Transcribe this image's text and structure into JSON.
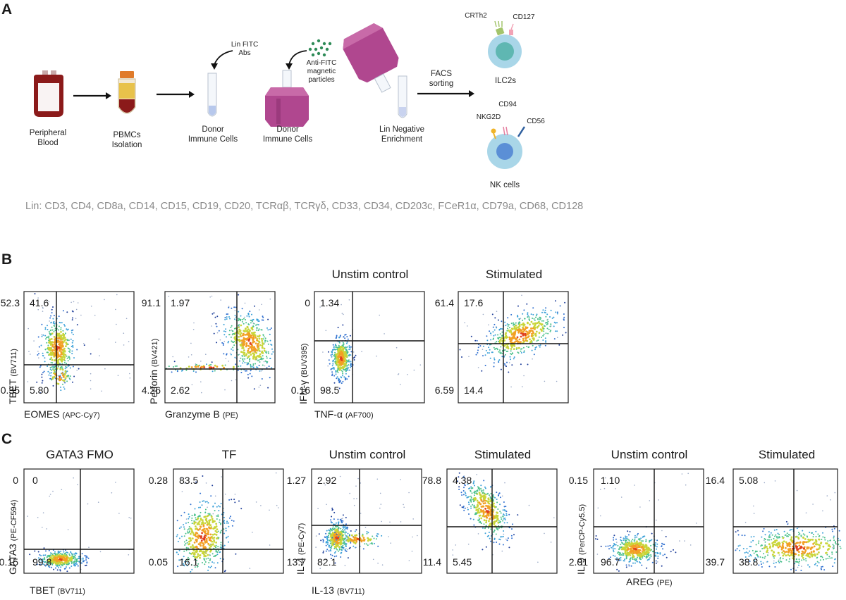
{
  "panel_a": {
    "letter": "A",
    "steps": {
      "peripheral_blood": "Peripheral\nBlood",
      "pbmcs": "PBMCs\nIsolation",
      "donor1": "Donor\nImmune Cells",
      "donor2": "Donor\nImmune Cells",
      "lin_neg": "Lin Negative\nEnrichment",
      "facs": "FACS\nsorting"
    },
    "annotations": {
      "lin_fitc": "Lin FITC\nAbs",
      "anti_fitc": "Anti-FITC\nmagnetic\nparticles"
    },
    "cells": {
      "ilc2_name": "ILC2s",
      "ilc2_markers": [
        "CRTh2",
        "CD127"
      ],
      "nk_name": "NK cells",
      "nk_markers": [
        "CD94",
        "NKG2D",
        "CD56"
      ]
    },
    "lin_list": "Lin: CD3, CD4, CD8a, CD14, CD15, CD19, CD20, TCRαβ, TCRγδ, CD33, CD34, CD203c, FCeR1α, CD79a, CD68, CD128",
    "colors": {
      "blood": "#8b1a1a",
      "column": "#b0478f",
      "cell": "#a9d6e8",
      "nucleus": "#5fb7b2",
      "nk_nucleus": "#5b8fd6"
    }
  },
  "panel_b": {
    "letter": "B",
    "plots": [
      {
        "title": "",
        "xlabel": "EOMES",
        "xlabel_fluor": "(APC-Cy7)",
        "ylabel": "TBET",
        "ylabel_fluor": "(BV711)",
        "quadrants": {
          "ul": "41.6",
          "ur": "52.3",
          "ll": "5.80",
          "lr": "0.35"
        }
      },
      {
        "title": "",
        "xlabel": "Granzyme B",
        "xlabel_fluor": "(PE)",
        "ylabel": "Perforin",
        "ylabel_fluor": "(BV421)",
        "quadrants": {
          "ul": "1.97",
          "ur": "91.1",
          "ll": "2.62",
          "lr": "4.26"
        }
      },
      {
        "title": "Unstim control",
        "xlabel": "TNF-α",
        "xlabel_fluor": "(AF700)",
        "ylabel": "IFN-γ",
        "ylabel_fluor": "(BUV395)",
        "quadrants": {
          "ul": "1.34",
          "ur": "0",
          "ll": "98.5",
          "lr": "0.16"
        }
      },
      {
        "title": "Stimulated",
        "xlabel": "",
        "xlabel_fluor": "",
        "ylabel": "",
        "ylabel_fluor": "",
        "quadrants": {
          "ul": "17.6",
          "ur": "61.4",
          "ll": "14.4",
          "lr": "6.59"
        }
      }
    ]
  },
  "panel_c": {
    "letter": "C",
    "plots": [
      {
        "title": "GATA3 FMO",
        "xlabel": "TBET",
        "xlabel_fluor": "(BV711)",
        "ylabel": "GATA3",
        "ylabel_fluor": "(PE-CF594)",
        "quadrants": {
          "ul": "0",
          "ur": "0",
          "ll": "99.8",
          "lr": "0.15"
        }
      },
      {
        "title": "TF",
        "xlabel": "",
        "xlabel_fluor": "",
        "ylabel": "",
        "ylabel_fluor": "",
        "quadrants": {
          "ul": "83.5",
          "ur": "0.28",
          "ll": "16.1",
          "lr": "0.05"
        }
      },
      {
        "title": "Unstim control",
        "xlabel": "IL-13",
        "xlabel_fluor": "(BV711)",
        "ylabel": "IL-4",
        "ylabel_fluor": "(PE-Cy7)",
        "quadrants": {
          "ul": "2.92",
          "ur": "1.27",
          "ll": "82.1",
          "lr": "13.7"
        }
      },
      {
        "title": "Stimulated",
        "xlabel": "",
        "xlabel_fluor": "",
        "ylabel": "",
        "ylabel_fluor": "",
        "quadrants": {
          "ul": "4.38",
          "ur": "78.8",
          "ll": "5.45",
          "lr": "11.4"
        }
      },
      {
        "title": "Unstim control",
        "xlabel": "AREG",
        "xlabel_fluor": "(PE)",
        "ylabel": "IL-9",
        "ylabel_fluor": "(PerCP-Cy5.5)",
        "quadrants": {
          "ul": "1.10",
          "ur": "0.15",
          "ll": "96.7",
          "lr": "2.01"
        }
      },
      {
        "title": "Stimulated",
        "xlabel": "",
        "xlabel_fluor": "",
        "ylabel": "",
        "ylabel_fluor": "",
        "quadrants": {
          "ul": "5.08",
          "ur": "16.4",
          "ll": "38.8",
          "lr": "39.7"
        }
      }
    ]
  }
}
